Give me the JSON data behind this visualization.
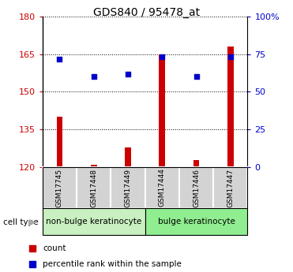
{
  "title": "GDS840 / 95478_at",
  "samples": [
    "GSM17745",
    "GSM17448",
    "GSM17449",
    "GSM17444",
    "GSM17446",
    "GSM17447"
  ],
  "red_values": [
    140,
    121,
    128,
    165,
    123,
    168
  ],
  "blue_values": [
    163,
    156,
    157,
    164,
    156,
    164
  ],
  "ylim_left": [
    120,
    180
  ],
  "yticks_left": [
    120,
    135,
    150,
    165,
    180
  ],
  "ylim_right": [
    0,
    100
  ],
  "yticks_right": [
    0,
    25,
    50,
    75,
    100
  ],
  "ytick_labels_right": [
    "0",
    "25",
    "50",
    "75",
    "100%"
  ],
  "bar_color": "#cc0000",
  "dot_color": "#0000cc",
  "bar_width": 0.18,
  "groups": [
    {
      "label": "non-bulge keratinocyte",
      "indices": [
        0,
        1,
        2
      ],
      "color": "#c8f0c0"
    },
    {
      "label": "bulge keratinocyte",
      "indices": [
        3,
        4,
        5
      ],
      "color": "#90ee90"
    }
  ],
  "cell_type_label": "cell type",
  "legend_items": [
    {
      "label": "count",
      "color": "#cc0000"
    },
    {
      "label": "percentile rank within the sample",
      "color": "#0000cc"
    }
  ],
  "left_tick_color": "#cc0000",
  "right_tick_color": "#0000cc",
  "sample_box_color": "#d3d3d3",
  "base_value": 120
}
